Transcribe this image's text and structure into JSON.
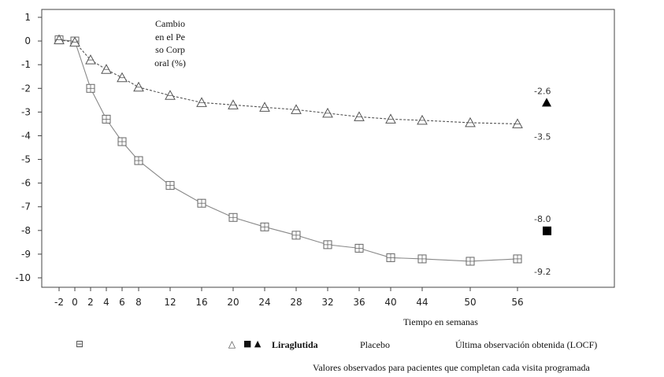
{
  "chart_data": {
    "type": "line",
    "ylabel": "Cambio en el Peso Corporal (%)",
    "xlabel": "Tiempo en semanas",
    "ylim": [
      -10,
      1
    ],
    "yticks": [
      1,
      0,
      -1,
      -2,
      -3,
      -4,
      -5,
      -6,
      -7,
      -8,
      -9,
      -10
    ],
    "xticks": [
      -2,
      0,
      2,
      4,
      6,
      8,
      12,
      16,
      20,
      24,
      28,
      32,
      36,
      40,
      44,
      50,
      56
    ],
    "grid": false,
    "series": [
      {
        "name": "Liraglutida",
        "marker": "square",
        "line": "solid",
        "color": "#888888",
        "x": [
          -2,
          0,
          2,
          4,
          6,
          8,
          12,
          16,
          20,
          24,
          28,
          32,
          36,
          40,
          44,
          50,
          56
        ],
        "values": [
          0.05,
          0.0,
          -2.0,
          -3.3,
          -4.25,
          -5.05,
          -6.1,
          -6.85,
          -7.45,
          -7.85,
          -8.2,
          -8.6,
          -8.75,
          -9.15,
          -9.2,
          -9.3,
          -9.2
        ]
      },
      {
        "name": "Placebo",
        "marker": "triangle",
        "line": "dashed",
        "color": "#555555",
        "x": [
          -2,
          0,
          2,
          4,
          6,
          8,
          12,
          16,
          20,
          24,
          28,
          32,
          36,
          40,
          44,
          50,
          56
        ],
        "values": [
          0.05,
          -0.05,
          -0.8,
          -1.2,
          -1.55,
          -1.95,
          -2.3,
          -2.6,
          -2.7,
          -2.8,
          -2.9,
          -3.05,
          -3.2,
          -3.3,
          -3.35,
          -3.45,
          -3.5
        ]
      }
    ],
    "locf": [
      {
        "series": "Liraglutida",
        "marker": "filled-square",
        "value": -8.0,
        "label": "-8.0"
      },
      {
        "series": "Placebo",
        "marker": "filled-triangle",
        "value": -2.6,
        "label": "-2.6"
      }
    ],
    "end_labels": [
      {
        "series": "Liraglutida",
        "label": "-9.2"
      },
      {
        "series": "Placebo",
        "label": "-3.5"
      }
    ],
    "legend": {
      "observed_symbols": "⊟ △",
      "locf_symbols": "■ ▲",
      "drug": "Liraglutida",
      "placebo": "Placebo",
      "locf": "Última observación obtenida (LOCF)",
      "observed": "Valores observados para pacientes que completan cada visita programada"
    }
  }
}
